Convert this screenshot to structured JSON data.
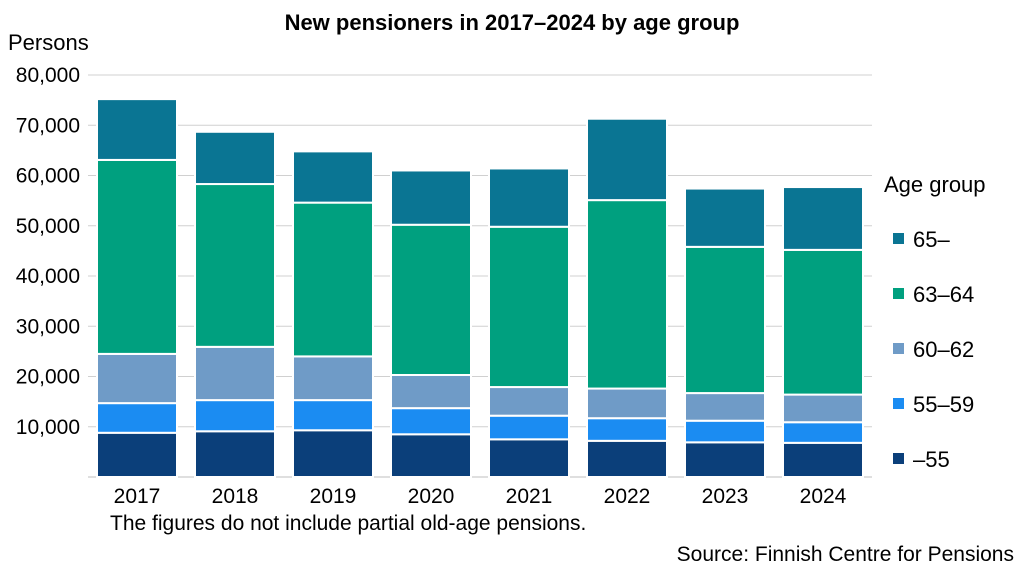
{
  "chart_data": {
    "type": "bar",
    "stacked": true,
    "title": "New pensioners in 2017–2024 by age group",
    "ylabel": "Persons",
    "xlabel": "",
    "ylim": [
      0,
      80000
    ],
    "yticks": [
      10000,
      20000,
      30000,
      40000,
      50000,
      60000,
      70000,
      80000
    ],
    "ytick_labels": [
      "10,000",
      "20,000",
      "30,000",
      "40,000",
      "50,000",
      "60,000",
      "70,000",
      "80,000"
    ],
    "grid": true,
    "legend_title": "Age group",
    "legend_position": "right",
    "categories": [
      "2017",
      "2018",
      "2019",
      "2020",
      "2021",
      "2022",
      "2023",
      "2024"
    ],
    "series": [
      {
        "name": "–55",
        "color": "#0b3f7a",
        "values": [
          8800,
          9100,
          9300,
          8500,
          7500,
          7200,
          6900,
          6800
        ]
      },
      {
        "name": "55–59",
        "color": "#1b8cf2",
        "values": [
          5900,
          6200,
          6000,
          5200,
          4700,
          4500,
          4300,
          4100
        ]
      },
      {
        "name": "60–62",
        "color": "#6f9bc7",
        "values": [
          9800,
          10600,
          8700,
          6600,
          5700,
          5900,
          5500,
          5500
        ]
      },
      {
        "name": "63–64",
        "color": "#00a07f",
        "values": [
          38600,
          32400,
          30600,
          29900,
          31900,
          37500,
          29100,
          28800
        ]
      },
      {
        "name": "65–",
        "color": "#0a7593",
        "values": [
          12100,
          10400,
          10200,
          10800,
          11600,
          16200,
          11600,
          12500
        ]
      }
    ]
  },
  "note": "The figures do not include partial old-age pensions.",
  "source": "Source: Finnish Centre for Pensions"
}
